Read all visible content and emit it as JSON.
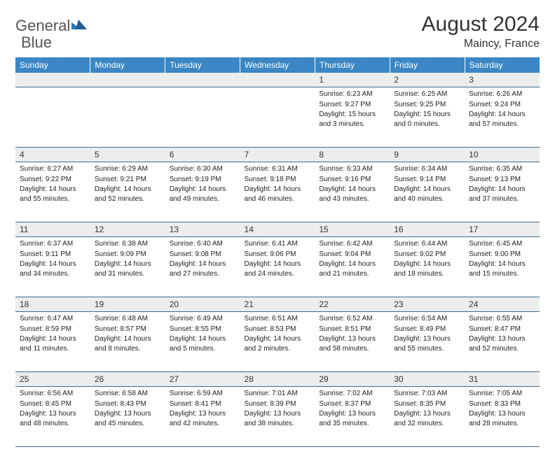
{
  "brand": {
    "part1": "General",
    "part2": "Blue"
  },
  "title": "August 2024",
  "location": "Maincy, France",
  "colors": {
    "header_bg": "#3b86c4",
    "header_text": "#ffffff",
    "daynum_bg": "#eceded",
    "grid_line": "#3b6b91",
    "logo_gray": "#555555",
    "logo_blue": "#2a7ab9"
  },
  "dayHeaders": [
    "Sunday",
    "Monday",
    "Tuesday",
    "Wednesday",
    "Thursday",
    "Friday",
    "Saturday"
  ],
  "weeks": [
    [
      {
        "n": "",
        "sr": "",
        "ss": "",
        "dl": ""
      },
      {
        "n": "",
        "sr": "",
        "ss": "",
        "dl": ""
      },
      {
        "n": "",
        "sr": "",
        "ss": "",
        "dl": ""
      },
      {
        "n": "",
        "sr": "",
        "ss": "",
        "dl": ""
      },
      {
        "n": "1",
        "sr": "Sunrise: 6:23 AM",
        "ss": "Sunset: 9:27 PM",
        "dl": "Daylight: 15 hours and 3 minutes."
      },
      {
        "n": "2",
        "sr": "Sunrise: 6:25 AM",
        "ss": "Sunset: 9:25 PM",
        "dl": "Daylight: 15 hours and 0 minutes."
      },
      {
        "n": "3",
        "sr": "Sunrise: 6:26 AM",
        "ss": "Sunset: 9:24 PM",
        "dl": "Daylight: 14 hours and 57 minutes."
      }
    ],
    [
      {
        "n": "4",
        "sr": "Sunrise: 6:27 AM",
        "ss": "Sunset: 9:22 PM",
        "dl": "Daylight: 14 hours and 55 minutes."
      },
      {
        "n": "5",
        "sr": "Sunrise: 6:29 AM",
        "ss": "Sunset: 9:21 PM",
        "dl": "Daylight: 14 hours and 52 minutes."
      },
      {
        "n": "6",
        "sr": "Sunrise: 6:30 AM",
        "ss": "Sunset: 9:19 PM",
        "dl": "Daylight: 14 hours and 49 minutes."
      },
      {
        "n": "7",
        "sr": "Sunrise: 6:31 AM",
        "ss": "Sunset: 9:18 PM",
        "dl": "Daylight: 14 hours and 46 minutes."
      },
      {
        "n": "8",
        "sr": "Sunrise: 6:33 AM",
        "ss": "Sunset: 9:16 PM",
        "dl": "Daylight: 14 hours and 43 minutes."
      },
      {
        "n": "9",
        "sr": "Sunrise: 6:34 AM",
        "ss": "Sunset: 9:14 PM",
        "dl": "Daylight: 14 hours and 40 minutes."
      },
      {
        "n": "10",
        "sr": "Sunrise: 6:35 AM",
        "ss": "Sunset: 9:13 PM",
        "dl": "Daylight: 14 hours and 37 minutes."
      }
    ],
    [
      {
        "n": "11",
        "sr": "Sunrise: 6:37 AM",
        "ss": "Sunset: 9:11 PM",
        "dl": "Daylight: 14 hours and 34 minutes."
      },
      {
        "n": "12",
        "sr": "Sunrise: 6:38 AM",
        "ss": "Sunset: 9:09 PM",
        "dl": "Daylight: 14 hours and 31 minutes."
      },
      {
        "n": "13",
        "sr": "Sunrise: 6:40 AM",
        "ss": "Sunset: 9:08 PM",
        "dl": "Daylight: 14 hours and 27 minutes."
      },
      {
        "n": "14",
        "sr": "Sunrise: 6:41 AM",
        "ss": "Sunset: 9:06 PM",
        "dl": "Daylight: 14 hours and 24 minutes."
      },
      {
        "n": "15",
        "sr": "Sunrise: 6:42 AM",
        "ss": "Sunset: 9:04 PM",
        "dl": "Daylight: 14 hours and 21 minutes."
      },
      {
        "n": "16",
        "sr": "Sunrise: 6:44 AM",
        "ss": "Sunset: 9:02 PM",
        "dl": "Daylight: 14 hours and 18 minutes."
      },
      {
        "n": "17",
        "sr": "Sunrise: 6:45 AM",
        "ss": "Sunset: 9:00 PM",
        "dl": "Daylight: 14 hours and 15 minutes."
      }
    ],
    [
      {
        "n": "18",
        "sr": "Sunrise: 6:47 AM",
        "ss": "Sunset: 8:59 PM",
        "dl": "Daylight: 14 hours and 11 minutes."
      },
      {
        "n": "19",
        "sr": "Sunrise: 6:48 AM",
        "ss": "Sunset: 8:57 PM",
        "dl": "Daylight: 14 hours and 8 minutes."
      },
      {
        "n": "20",
        "sr": "Sunrise: 6:49 AM",
        "ss": "Sunset: 8:55 PM",
        "dl": "Daylight: 14 hours and 5 minutes."
      },
      {
        "n": "21",
        "sr": "Sunrise: 6:51 AM",
        "ss": "Sunset: 8:53 PM",
        "dl": "Daylight: 14 hours and 2 minutes."
      },
      {
        "n": "22",
        "sr": "Sunrise: 6:52 AM",
        "ss": "Sunset: 8:51 PM",
        "dl": "Daylight: 13 hours and 58 minutes."
      },
      {
        "n": "23",
        "sr": "Sunrise: 6:54 AM",
        "ss": "Sunset: 8:49 PM",
        "dl": "Daylight: 13 hours and 55 minutes."
      },
      {
        "n": "24",
        "sr": "Sunrise: 6:55 AM",
        "ss": "Sunset: 8:47 PM",
        "dl": "Daylight: 13 hours and 52 minutes."
      }
    ],
    [
      {
        "n": "25",
        "sr": "Sunrise: 6:56 AM",
        "ss": "Sunset: 8:45 PM",
        "dl": "Daylight: 13 hours and 48 minutes."
      },
      {
        "n": "26",
        "sr": "Sunrise: 6:58 AM",
        "ss": "Sunset: 8:43 PM",
        "dl": "Daylight: 13 hours and 45 minutes."
      },
      {
        "n": "27",
        "sr": "Sunrise: 6:59 AM",
        "ss": "Sunset: 8:41 PM",
        "dl": "Daylight: 13 hours and 42 minutes."
      },
      {
        "n": "28",
        "sr": "Sunrise: 7:01 AM",
        "ss": "Sunset: 8:39 PM",
        "dl": "Daylight: 13 hours and 38 minutes."
      },
      {
        "n": "29",
        "sr": "Sunrise: 7:02 AM",
        "ss": "Sunset: 8:37 PM",
        "dl": "Daylight: 13 hours and 35 minutes."
      },
      {
        "n": "30",
        "sr": "Sunrise: 7:03 AM",
        "ss": "Sunset: 8:35 PM",
        "dl": "Daylight: 13 hours and 32 minutes."
      },
      {
        "n": "31",
        "sr": "Sunrise: 7:05 AM",
        "ss": "Sunset: 8:33 PM",
        "dl": "Daylight: 13 hours and 28 minutes."
      }
    ]
  ]
}
